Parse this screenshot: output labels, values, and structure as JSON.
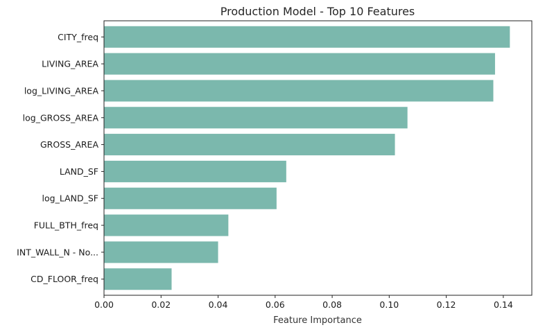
{
  "chart_data": {
    "type": "bar",
    "orientation": "horizontal",
    "title": "Production Model - Top 10 Features",
    "xlabel": "Feature Importance",
    "ylabel": "",
    "xlim": [
      0,
      0.15
    ],
    "xticks": [
      "0.00",
      "0.02",
      "0.04",
      "0.06",
      "0.08",
      "0.10",
      "0.12",
      "0.14"
    ],
    "categories": [
      "CITY_freq",
      "LIVING_AREA",
      "log_LIVING_AREA",
      "log_GROSS_AREA",
      "GROSS_AREA",
      "LAND_SF",
      "log_LAND_SF",
      "FULL_BTH_freq",
      "INT_WALL_N - No...",
      "CD_FLOOR_freq"
    ],
    "values": [
      0.1423,
      0.1371,
      0.1365,
      0.1064,
      0.102,
      0.0639,
      0.0605,
      0.0436,
      0.04,
      0.0237
    ],
    "bar_color": "#7bb8ad",
    "grid": false,
    "legend": "none"
  }
}
